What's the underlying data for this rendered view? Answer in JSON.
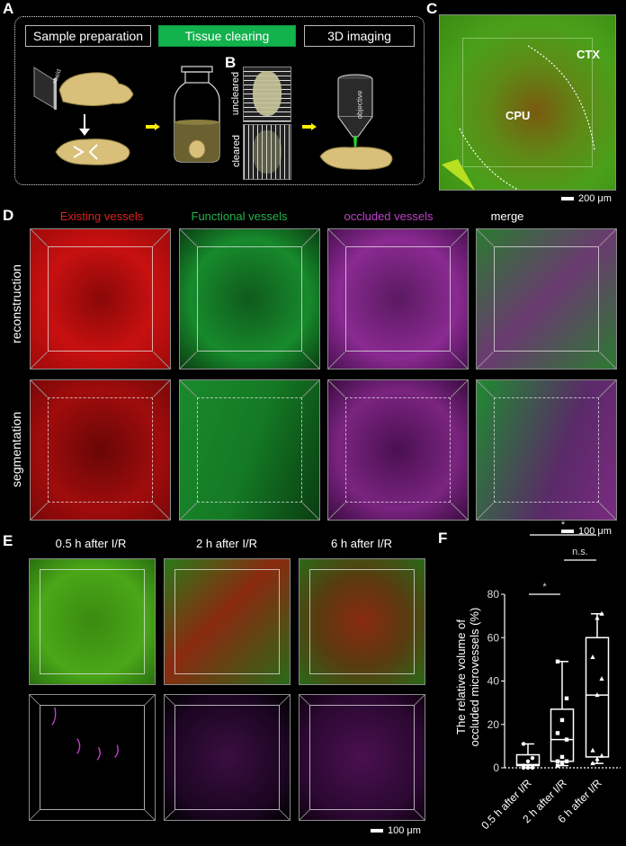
{
  "panels": {
    "A": {
      "label": "A",
      "steps": [
        {
          "label": "Sample preparation",
          "active": false
        },
        {
          "label": "Tissue clearing",
          "active": true
        },
        {
          "label": "3D imaging",
          "active": false
        }
      ],
      "blade_label": "blade",
      "objective_label": "objective"
    },
    "B": {
      "label": "B",
      "uncleared_label": "uncleared",
      "cleared_label": "cleared"
    },
    "C": {
      "label": "C",
      "region_ctx": "CTX",
      "region_cpu": "CPU",
      "scale_bar": "200 μm"
    },
    "D": {
      "label": "D",
      "columns": [
        {
          "title": "Existing vessels",
          "color": "#e0201f"
        },
        {
          "title": "Functional vessels",
          "color": "#22b24c"
        },
        {
          "title": "occluded vessels",
          "color": "#c040c8"
        },
        {
          "title": "merge",
          "color": "#ffffff"
        }
      ],
      "rows": [
        "reconstruction",
        "segmentation"
      ],
      "scale_bar": "100 μm"
    },
    "E": {
      "label": "E",
      "columns": [
        "0.5 h after I/R",
        "2 h after I/R",
        "6 h after I/R"
      ],
      "scale_bar": "100 μm"
    },
    "F": {
      "label": "F"
    }
  },
  "chart_data": {
    "type": "box",
    "title": "",
    "xlabel": "",
    "ylabel": "The relative volume of occluded microvessels (%)",
    "ylim": [
      0,
      80
    ],
    "yticks": [
      0,
      20,
      40,
      60,
      80
    ],
    "categories": [
      "0.5 h after I/R",
      "2 h after I/R",
      "6 h after I/R"
    ],
    "series": [
      {
        "name": "0.5 h after I/R",
        "marker": "circle",
        "min": 0,
        "q1": 1,
        "median": 1.5,
        "q3": 6,
        "max": 11,
        "points": [
          0,
          0,
          0,
          1,
          3,
          4.5,
          11
        ]
      },
      {
        "name": "2 h after I/R",
        "marker": "square",
        "min": 1,
        "q1": 3,
        "median": 13,
        "q3": 27,
        "max": 49,
        "points": [
          1,
          2,
          3,
          3,
          5,
          13,
          16,
          22,
          32,
          49
        ]
      },
      {
        "name": "6 h after I/R",
        "marker": "triangle",
        "min": 2,
        "q1": 5,
        "median": 33.5,
        "q3": 60,
        "max": 71,
        "points": [
          2,
          4,
          5.5,
          8,
          33.5,
          41,
          51,
          69,
          71
        ]
      }
    ],
    "annotations": [
      {
        "between": [
          "0.5 h after I/R",
          "2 h after I/R"
        ],
        "text": "*"
      },
      {
        "between": [
          "2 h after I/R",
          "6 h after I/R"
        ],
        "text": "n.s."
      },
      {
        "between": [
          "0.5 h after I/R",
          "6 h after I/R"
        ],
        "text": "*"
      }
    ]
  }
}
